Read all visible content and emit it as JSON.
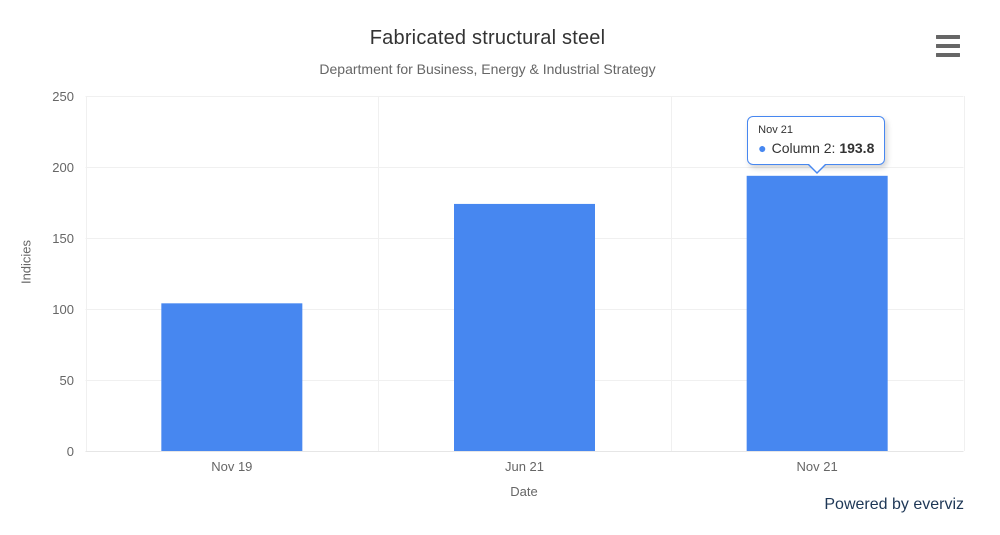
{
  "chart": {
    "title": "Fabricated structural steel",
    "subtitle": "Department for Business, Energy & Industrial Strategy",
    "credit_text": "Powered by everviz"
  },
  "chart_data": {
    "type": "bar",
    "title": "Fabricated structural steel",
    "subtitle": "Department for Business, Energy & Industrial Strategy",
    "categories": [
      "Nov 19",
      "Jun 21",
      "Nov 21"
    ],
    "series": [
      {
        "name": "Column 2",
        "color": "#4787f0",
        "values": [
          104,
          174,
          193.8
        ]
      }
    ],
    "xlabel": "Date",
    "ylabel": "Indicies",
    "ylim": [
      0,
      250
    ],
    "yticks": [
      0,
      50,
      100,
      150,
      200,
      250
    ],
    "grid": true,
    "legend_position": "none"
  },
  "tooltip": {
    "point_index": 2,
    "category": "Nov 21",
    "series_name": "Column 2",
    "separator": ": ",
    "value": "193.8",
    "marker_glyph": "●",
    "marker_color": "#4787f0",
    "border_color": "#4787f0"
  },
  "icons": {
    "menu": "hamburger-icon"
  },
  "colors": {
    "bar": "#4787f0",
    "gridline": "#f0f0f0",
    "axis_line": "#e6e6e6",
    "title_text": "#333333",
    "muted_text": "#666666",
    "credit_text": "#1e3756"
  }
}
